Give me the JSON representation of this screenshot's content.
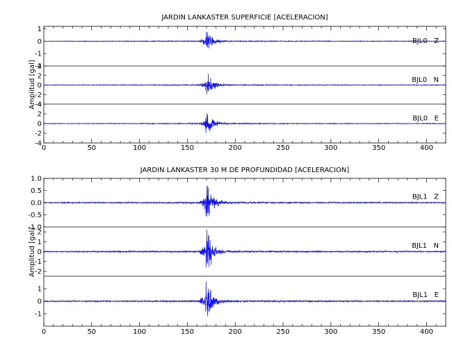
{
  "chart_data": [
    {
      "type": "line",
      "title": "JARDIN LANKASTER SUPERFICIE [ACELERACION]",
      "ylabel": "Amplitud [gal]",
      "xlabel": "",
      "xlim": [
        0,
        420
      ],
      "x_ticks": [
        "0",
        "50",
        "100",
        "150",
        "200",
        "250",
        "300",
        "350",
        "400"
      ],
      "event_time": 170,
      "colors": {
        "trace": "#1010ee",
        "axis": "#000000"
      },
      "series": [
        {
          "name": "BJL0   Z",
          "ylim": [
            -2,
            1.2
          ],
          "y_ticks": [
            "1",
            "0",
            "-1",
            "-2"
          ],
          "peak_amplitude": 1.0
        },
        {
          "name": "BJL0   N",
          "ylim": [
            -4,
            4
          ],
          "y_ticks": [
            "4",
            "2",
            "0",
            "-2",
            "-4"
          ],
          "peak_amplitude": 2.5
        },
        {
          "name": "BJL0   E",
          "ylim": [
            -4,
            4
          ],
          "y_ticks": [
            "4",
            "2",
            "0",
            "-2",
            "-4"
          ],
          "peak_amplitude": 2.5
        }
      ]
    },
    {
      "type": "line",
      "title": "JARDIN LANKASTER 30 M DE PROFUNDIDAD [ACELERACION]",
      "ylabel": "Amplitud [gal]",
      "xlabel": "",
      "xlim": [
        0,
        420
      ],
      "x_ticks": [
        "0",
        "50",
        "100",
        "150",
        "200",
        "250",
        "300",
        "350",
        "400"
      ],
      "event_time": 170,
      "colors": {
        "trace": "#1010ee",
        "axis": "#000000"
      },
      "series": [
        {
          "name": "BJL1   Z",
          "ylim": [
            -1.0,
            1.0
          ],
          "y_ticks": [
            "1.0",
            "0.5",
            "0.0",
            "-0.5",
            "-1.0"
          ],
          "peak_amplitude": 0.9
        },
        {
          "name": "BJL1   N",
          "ylim": [
            -2.5,
            2.5
          ],
          "y_ticks": [
            "2",
            "1",
            "0",
            "-1",
            "-2"
          ],
          "peak_amplitude": 2.4
        },
        {
          "name": "BJL1   E",
          "ylim": [
            -2,
            2
          ],
          "y_ticks": [
            "1",
            "0",
            "-1"
          ],
          "peak_amplitude": 1.8
        }
      ]
    }
  ]
}
